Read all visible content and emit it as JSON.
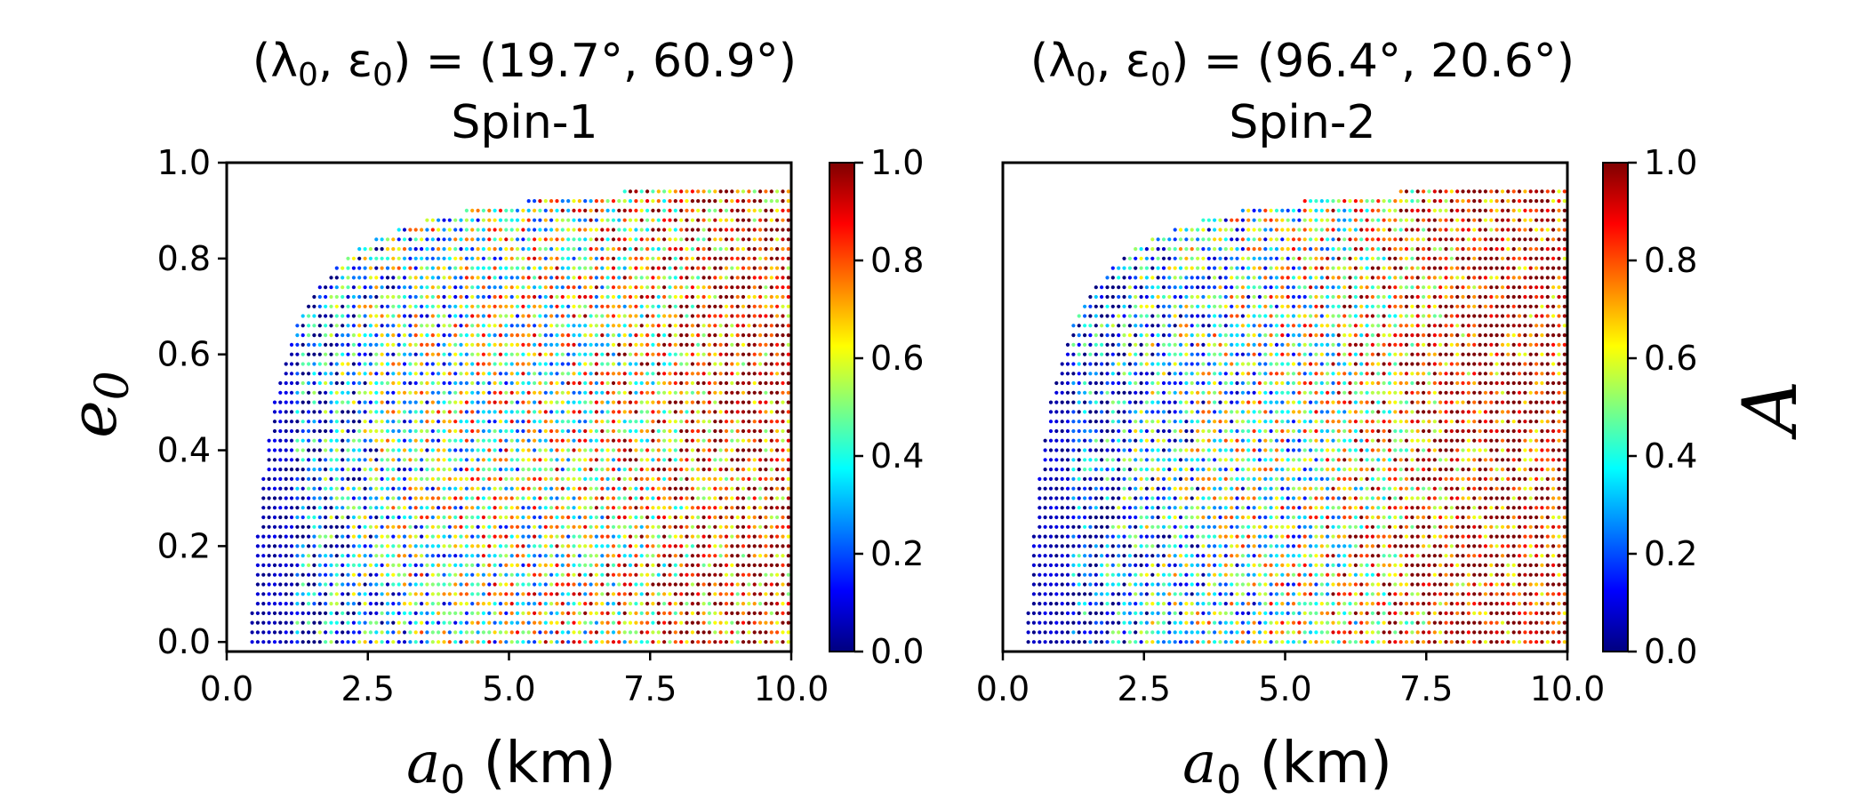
{
  "chart_data": [
    {
      "type": "scatter",
      "title": "(λ0, ε0) = (19.7°, 60.9°)",
      "title_line1": "(λ",
      "title_sub_1": "0",
      "title_mid": ", ε",
      "title_sub_2": "0",
      "title_end": ") = (19.7°, 60.9°)",
      "subtitle": "Spin-1",
      "xlabel": "a0 (km)",
      "xlabel_var": "a",
      "xlabel_sub": "0",
      "xlabel_unit": " (km)",
      "ylabel": "e0",
      "ylabel_var": "e",
      "ylabel_sub": "0",
      "xlim": [
        0.0,
        10.0
      ],
      "ylim": [
        -0.02,
        1.0
      ],
      "xticks": [
        "0.0",
        "2.5",
        "5.0",
        "7.5",
        "10.0"
      ],
      "xtick_values": [
        0.0,
        2.5,
        5.0,
        7.5,
        10.0
      ],
      "yticks": [
        "0.0",
        "0.2",
        "0.4",
        "0.6",
        "0.8",
        "1.0"
      ],
      "ytick_values": [
        0.0,
        0.2,
        0.4,
        0.6,
        0.8,
        1.0
      ],
      "grid": {
        "a_start": 0.45,
        "a_end": 9.95,
        "a_step": 0.1,
        "e_start": 0.0,
        "e_end": 0.96,
        "e_step": 0.02
      },
      "boundary_note": "points exist only where pericenter a0(1-e0) exceeds ~0.45 km",
      "colorbar": {
        "min": 0.0,
        "max": 1.0,
        "ticks": [
          "0.0",
          "0.2",
          "0.4",
          "0.6",
          "0.8",
          "1.0"
        ],
        "colormap": "jet"
      },
      "value_trend": [
        {
          "a0": 0.5,
          "mean_value": 0.05
        },
        {
          "a0": 1.5,
          "mean_value": 0.15
        },
        {
          "a0": 2.5,
          "mean_value": 0.35
        },
        {
          "a0": 3.5,
          "mean_value": 0.45
        },
        {
          "a0": 4.5,
          "mean_value": 0.5
        },
        {
          "a0": 5.5,
          "mean_value": 0.55
        },
        {
          "a0": 6.5,
          "mean_value": 0.6
        },
        {
          "a0": 7.5,
          "mean_value": 0.7
        },
        {
          "a0": 8.5,
          "mean_value": 0.85
        },
        {
          "a0": 9.5,
          "mean_value": 0.9
        }
      ],
      "seed": 17
    },
    {
      "type": "scatter",
      "title": "(λ0, ε0) = (96.4°, 20.6°)",
      "title_line1": "(λ",
      "title_sub_1": "0",
      "title_mid": ", ε",
      "title_sub_2": "0",
      "title_end": ") = (96.4°, 20.6°)",
      "subtitle": "Spin-2",
      "xlabel": "a0 (km)",
      "xlabel_var": "a",
      "xlabel_sub": "0",
      "xlabel_unit": " (km)",
      "ylabel": "",
      "xlim": [
        0.0,
        10.0
      ],
      "ylim": [
        -0.02,
        1.0
      ],
      "xticks": [
        "0.0",
        "2.5",
        "5.0",
        "7.5",
        "10.0"
      ],
      "xtick_values": [
        0.0,
        2.5,
        5.0,
        7.5,
        10.0
      ],
      "yticks": [],
      "ytick_values": [],
      "grid": {
        "a_start": 0.45,
        "a_end": 9.95,
        "a_step": 0.1,
        "e_start": 0.0,
        "e_end": 0.96,
        "e_step": 0.02
      },
      "boundary_note": "points exist only where pericenter a0(1-e0) exceeds ~0.45 km",
      "colorbar": {
        "min": 0.0,
        "max": 1.0,
        "ticks": [
          "0.0",
          "0.2",
          "0.4",
          "0.6",
          "0.8",
          "1.0"
        ],
        "colormap": "jet",
        "label": "A"
      },
      "value_trend": [
        {
          "a0": 0.5,
          "mean_value": 0.05
        },
        {
          "a0": 1.5,
          "mean_value": 0.1
        },
        {
          "a0": 2.5,
          "mean_value": 0.3
        },
        {
          "a0": 3.5,
          "mean_value": 0.4
        },
        {
          "a0": 4.5,
          "mean_value": 0.45
        },
        {
          "a0": 5.5,
          "mean_value": 0.55
        },
        {
          "a0": 6.5,
          "mean_value": 0.7
        },
        {
          "a0": 7.5,
          "mean_value": 0.85
        },
        {
          "a0": 8.5,
          "mean_value": 0.95
        },
        {
          "a0": 9.5,
          "mean_value": 0.98
        }
      ],
      "seed": 53
    }
  ],
  "colorbar_label": "A",
  "colors": {
    "jet_stops": [
      "#00007f",
      "#0000ff",
      "#007fff",
      "#00ffff",
      "#7fff7f",
      "#ffff00",
      "#ff7f00",
      "#ff0000",
      "#7f0000"
    ]
  }
}
